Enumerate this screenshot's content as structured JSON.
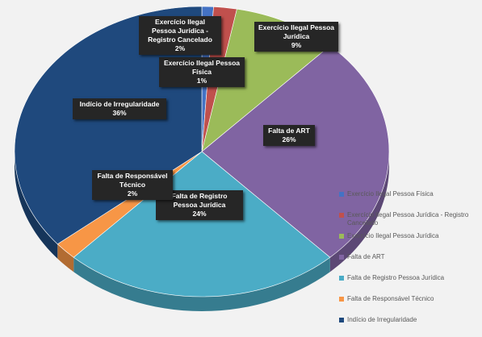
{
  "chart_data": {
    "type": "pie",
    "style": "3d",
    "legend_position": "right-bottom",
    "categories": [
      "Exercício Ilegal Pessoa Física",
      "Exercício Ilegal Pessoa Jurídica - Registro Cancelado",
      "Exercício Ilegal Pessoa Jurídica",
      "Falta de ART",
      "Falta de Registro Pessoa Jurídica",
      "Falta de Responsável Técnico",
      "Indício de Irregularidade"
    ],
    "values": [
      1,
      2,
      9,
      26,
      24,
      2,
      36
    ],
    "value_labels": [
      "1%",
      "2%",
      "9%",
      "26%",
      "24%",
      "2%",
      "36%"
    ],
    "colors": [
      "#4472c4",
      "#c0504d",
      "#9bbb59",
      "#8064a2",
      "#4bacc6",
      "#f79646",
      "#1f497d"
    ],
    "data_labels": [
      {
        "name": "Exercício Ilegal Pessoa Física",
        "value": "1%"
      },
      {
        "name": "Exercício Ilegal Pessoa Jurídica - Registro Cancelado",
        "value": "2%"
      },
      {
        "name": "Exercício Ilegal Pessoa Jurídica",
        "value": "9%"
      },
      {
        "name": "Falta de ART",
        "value": "26%"
      },
      {
        "name": "Falta de Registro Pessoa Jurídica",
        "value": "24%"
      },
      {
        "name": "Falta de Responsável Técnico",
        "value": "2%"
      },
      {
        "name": "Indício de Irregularidade",
        "value": "36%"
      }
    ]
  }
}
